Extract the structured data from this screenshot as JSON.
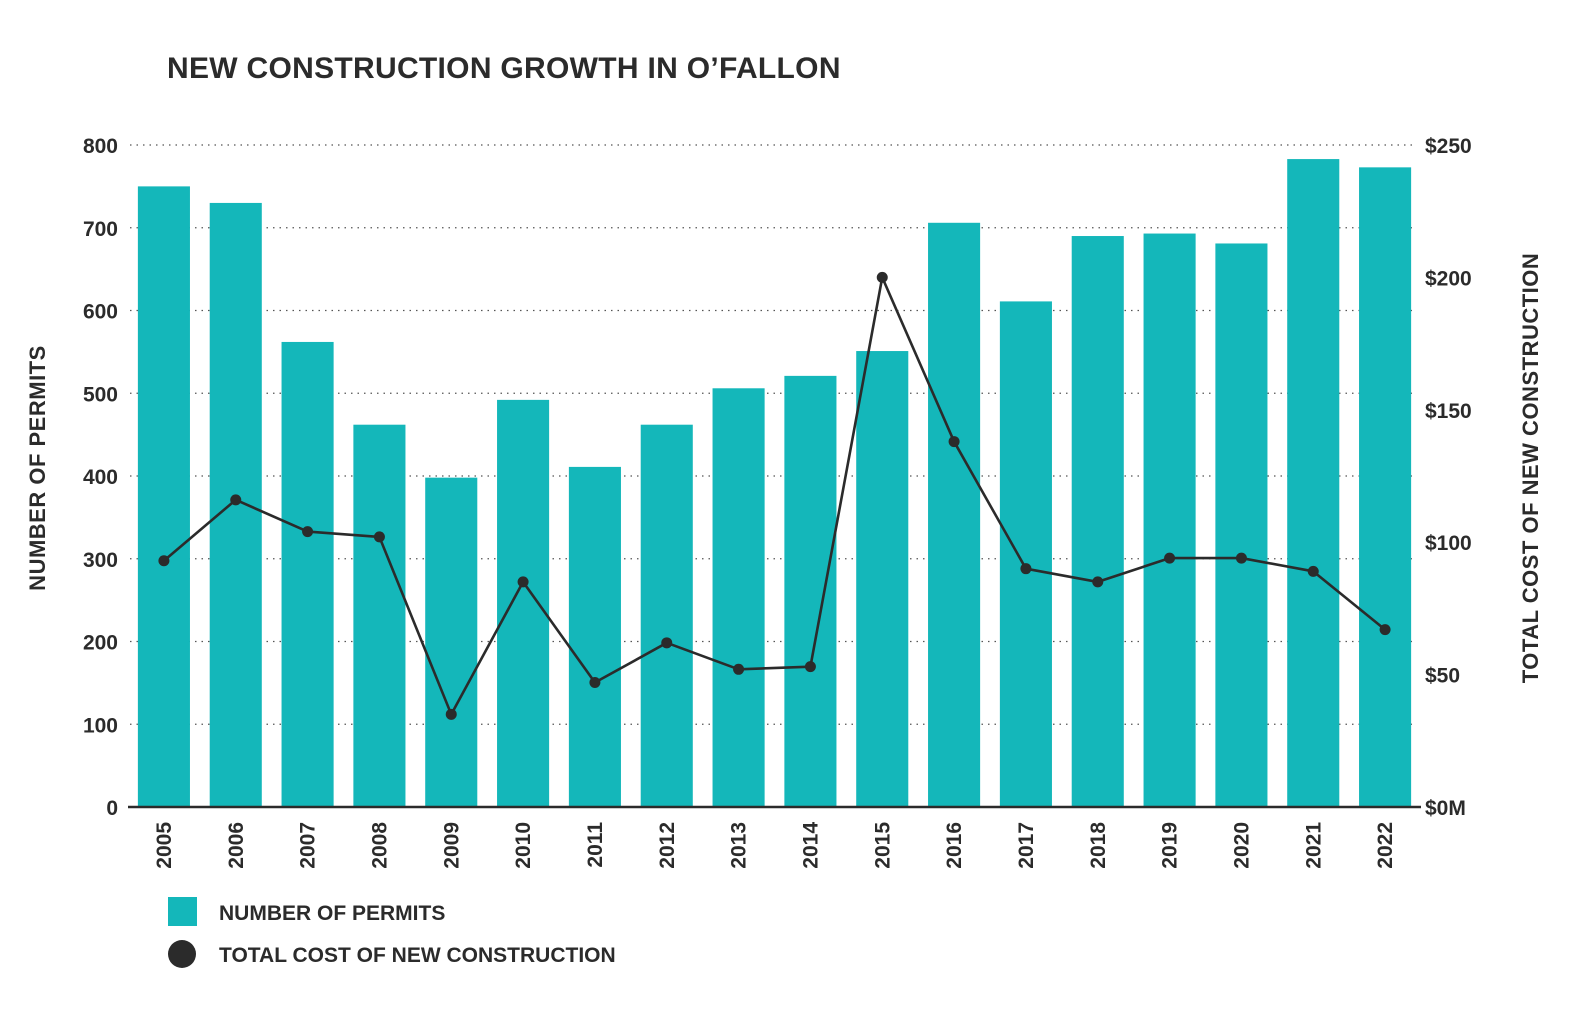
{
  "chart_data": {
    "type": "bar",
    "title": "NEW CONSTRUCTION GROWTH IN O’FALLON",
    "categories": [
      "2005",
      "2006",
      "2007",
      "2008",
      "2009",
      "2010",
      "2011",
      "2012",
      "2013",
      "2014",
      "2015",
      "2016",
      "2017",
      "2018",
      "2019",
      "2020",
      "2021",
      "2022"
    ],
    "series": [
      {
        "name": "NUMBER OF PERMITS",
        "type": "bar",
        "axis": "left",
        "color": "#14b7ba",
        "values": [
          750,
          730,
          562,
          462,
          398,
          492,
          411,
          462,
          506,
          521,
          551,
          706,
          611,
          690,
          693,
          681,
          783,
          773
        ]
      },
      {
        "name": "TOTAL COST OF NEW CONSTRUCTION",
        "type": "line",
        "axis": "right",
        "color": "#2b2b2b",
        "values": [
          93,
          116,
          104,
          102,
          35,
          85,
          47,
          62,
          52,
          53,
          200,
          138,
          90,
          85,
          94,
          94,
          89,
          67
        ]
      }
    ],
    "ylabel_left": "NUMBER OF PERMITS",
    "ylabel_right": "TOTAL COST OF NEW CONSTRUCTION",
    "ylim_left": [
      0,
      800
    ],
    "ylim_right": [
      0,
      250
    ],
    "yticks_left": [
      "800",
      "700",
      "600",
      "500",
      "400",
      "300",
      "200",
      "100",
      "0"
    ],
    "yticks_right": [
      "$250",
      "$200",
      "$150",
      "$100",
      "$50",
      "$0M"
    ],
    "grid": true,
    "legend_position": "bottom-left"
  }
}
